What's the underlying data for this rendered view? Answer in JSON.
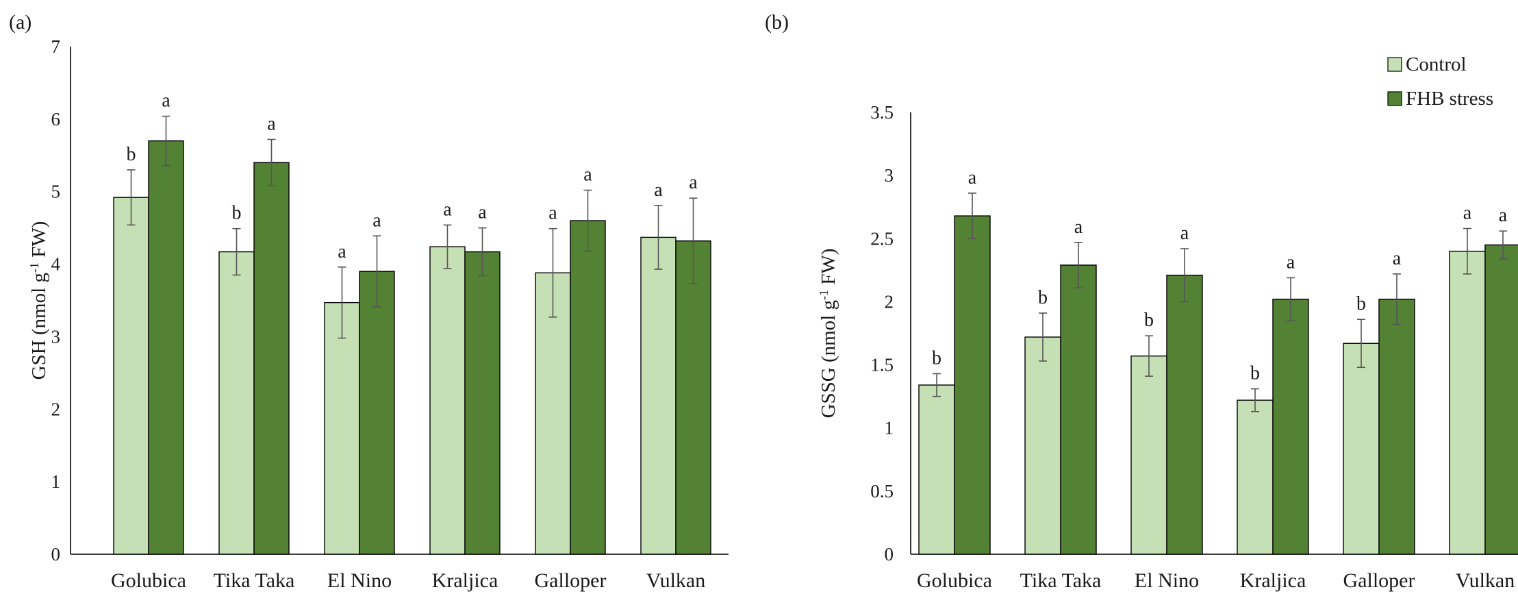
{
  "chart_data": [
    {
      "panel_label": "(a)",
      "type": "bar",
      "ylabel": {
        "main": "GSH (nmol g",
        "sup": "-1",
        "tail": " FW)"
      },
      "ylim": [
        0,
        7
      ],
      "yticks": [
        "0",
        "1",
        "2",
        "3",
        "4",
        "5",
        "6",
        "7"
      ],
      "categories": [
        "Golubica",
        "Tika Taka",
        "El Nino",
        "Kraljica",
        "Galloper",
        "Vulkan"
      ],
      "series": [
        {
          "name": "Control",
          "color": "#c5e0b4",
          "values": [
            4.92,
            4.17,
            3.47,
            4.24,
            3.88,
            4.37
          ],
          "errors": [
            0.38,
            0.32,
            0.49,
            0.3,
            0.61,
            0.44
          ],
          "letters": [
            "b",
            "b",
            "a",
            "a",
            "a",
            "a"
          ]
        },
        {
          "name": "FHB stress",
          "color": "#548235",
          "values": [
            5.7,
            5.4,
            3.9,
            4.17,
            4.6,
            4.32
          ],
          "errors": [
            0.34,
            0.32,
            0.49,
            0.33,
            0.42,
            0.59
          ],
          "letters": [
            "a",
            "a",
            "a",
            "a",
            "a",
            "a"
          ]
        }
      ],
      "legend": false
    },
    {
      "panel_label": "(b)",
      "type": "bar",
      "ylabel": {
        "main": "GSSG (nmol g",
        "sup": "-1",
        "tail": " FW)"
      },
      "ylim": [
        0,
        3.5
      ],
      "yticks": [
        "0",
        "0.5",
        "1",
        "1.5",
        "2",
        "2.5",
        "3",
        "3.5"
      ],
      "categories": [
        "Golubica",
        "Tika Taka",
        "El Nino",
        "Kraljica",
        "Galloper",
        "Vulkan"
      ],
      "series": [
        {
          "name": "Control",
          "color": "#c5e0b4",
          "values": [
            1.34,
            1.72,
            1.57,
            1.22,
            1.67,
            2.4
          ],
          "errors": [
            0.09,
            0.19,
            0.16,
            0.09,
            0.19,
            0.18
          ],
          "letters": [
            "b",
            "b",
            "b",
            "b",
            "b",
            "a"
          ]
        },
        {
          "name": "FHB stress",
          "color": "#548235",
          "values": [
            2.68,
            2.29,
            2.21,
            2.02,
            2.02,
            2.45
          ],
          "errors": [
            0.18,
            0.18,
            0.21,
            0.17,
            0.2,
            0.11
          ],
          "letters": [
            "a",
            "a",
            "a",
            "a",
            "a",
            "a"
          ]
        }
      ],
      "legend": true,
      "legend_position": "top-right"
    }
  ]
}
